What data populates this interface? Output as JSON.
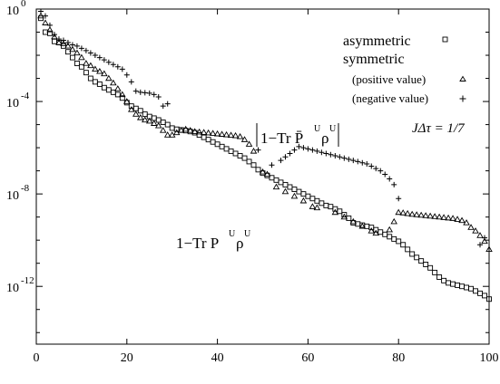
{
  "chart_data": {
    "type": "scatter",
    "x_axis": {
      "range": [
        0,
        100
      ],
      "ticks": [
        0,
        20,
        40,
        60,
        80,
        100
      ],
      "tick_labels": [
        "0",
        "20",
        "40",
        "60",
        "80",
        "100"
      ]
    },
    "y_axis": {
      "scale": "log",
      "range_exponent": [
        -14.5,
        0
      ],
      "ticks_exponent": [
        0,
        -4,
        -8,
        -12
      ],
      "tick_bases": [
        "10",
        "10",
        "10",
        "10"
      ],
      "tick_exps": [
        "0",
        "-4",
        "-8",
        "-12"
      ]
    },
    "grid": false,
    "legend": {
      "placement": "top-right",
      "entries": [
        {
          "label": "asymmetric",
          "marker": "square"
        },
        {
          "label": "symmetric",
          "marker": "none"
        },
        {
          "label": "(positive value)",
          "marker": "triangle"
        },
        {
          "label": "(negative value)",
          "marker": "plus"
        }
      ]
    },
    "annotations": {
      "param": "JΔτ = 1/7",
      "lower_curve": {
        "main": "1−Tr P",
        "sup": "U",
        "rho": "ρ",
        "rho_sup": "U"
      },
      "upper_curve": {
        "main": "1−Tr P̄",
        "sup": "U",
        "rho": "ρ",
        "rho_sup": "U"
      }
    },
    "series": [
      {
        "name": "asymmetric",
        "marker": "square",
        "points": [
          [
            1,
            -0.4
          ],
          [
            2,
            -1.0
          ],
          [
            3,
            -1.05
          ],
          [
            4,
            -1.4
          ],
          [
            5,
            -1.45
          ],
          [
            6,
            -1.6
          ],
          [
            7,
            -1.85
          ],
          [
            8,
            -2.1
          ],
          [
            9,
            -2.35
          ],
          [
            10,
            -2.5
          ],
          [
            11,
            -2.75
          ],
          [
            12,
            -3.0
          ],
          [
            13,
            -3.15
          ],
          [
            14,
            -3.25
          ],
          [
            15,
            -3.4
          ],
          [
            16,
            -3.5
          ],
          [
            17,
            -3.6
          ],
          [
            18,
            -3.7
          ],
          [
            19,
            -3.85
          ],
          [
            20,
            -4.05
          ],
          [
            21,
            -4.2
          ],
          [
            22,
            -4.3
          ],
          [
            23,
            -4.4
          ],
          [
            24,
            -4.55
          ],
          [
            25,
            -4.65
          ],
          [
            26,
            -4.72
          ],
          [
            27,
            -4.8
          ],
          [
            28,
            -4.9
          ],
          [
            29,
            -5.0
          ],
          [
            30,
            -5.15
          ],
          [
            31,
            -5.2
          ],
          [
            32,
            -5.23
          ],
          [
            33,
            -5.26
          ],
          [
            34,
            -5.3
          ],
          [
            35,
            -5.35
          ],
          [
            36,
            -5.45
          ],
          [
            37,
            -5.55
          ],
          [
            38,
            -5.65
          ],
          [
            39,
            -5.75
          ],
          [
            40,
            -5.85
          ],
          [
            41,
            -5.95
          ],
          [
            42,
            -6.05
          ],
          [
            43,
            -6.15
          ],
          [
            44,
            -6.25
          ],
          [
            45,
            -6.35
          ],
          [
            46,
            -6.45
          ],
          [
            47,
            -6.6
          ],
          [
            48,
            -6.75
          ],
          [
            49,
            -6.95
          ],
          [
            50,
            -7.1
          ],
          [
            51,
            -7.2
          ],
          [
            52,
            -7.3
          ],
          [
            53,
            -7.4
          ],
          [
            54,
            -7.5
          ],
          [
            55,
            -7.6
          ],
          [
            56,
            -7.7
          ],
          [
            57,
            -7.8
          ],
          [
            58,
            -7.9
          ],
          [
            59,
            -8.0
          ],
          [
            60,
            -8.1
          ],
          [
            61,
            -8.2
          ],
          [
            62,
            -8.3
          ],
          [
            63,
            -8.4
          ],
          [
            64,
            -8.5
          ],
          [
            65,
            -8.55
          ],
          [
            66,
            -8.65
          ],
          [
            67,
            -8.75
          ],
          [
            68,
            -8.9
          ],
          [
            69,
            -9.05
          ],
          [
            70,
            -9.25
          ],
          [
            71,
            -9.3
          ],
          [
            72,
            -9.35
          ],
          [
            73,
            -9.4
          ],
          [
            74,
            -9.45
          ],
          [
            75,
            -9.55
          ],
          [
            76,
            -9.65
          ],
          [
            77,
            -9.75
          ],
          [
            78,
            -9.85
          ],
          [
            79,
            -9.95
          ],
          [
            80,
            -10.05
          ],
          [
            81,
            -10.2
          ],
          [
            82,
            -10.4
          ],
          [
            83,
            -10.6
          ],
          [
            84,
            -10.75
          ],
          [
            85,
            -10.9
          ],
          [
            86,
            -11.05
          ],
          [
            87,
            -11.2
          ],
          [
            88,
            -11.4
          ],
          [
            89,
            -11.6
          ],
          [
            90,
            -11.75
          ],
          [
            91,
            -11.85
          ],
          [
            92,
            -11.9
          ],
          [
            93,
            -11.95
          ],
          [
            94,
            -12.0
          ],
          [
            95,
            -12.05
          ],
          [
            96,
            -12.1
          ],
          [
            97,
            -12.2
          ],
          [
            98,
            -12.3
          ],
          [
            99,
            -12.4
          ],
          [
            100,
            -12.55
          ]
        ]
      },
      {
        "name": "(positive value)",
        "marker": "triangle",
        "points": [
          [
            1,
            -0.3
          ],
          [
            2,
            -0.6
          ],
          [
            3,
            -0.9
          ],
          [
            4,
            -1.2
          ],
          [
            5,
            -1.45
          ],
          [
            6,
            -1.5
          ],
          [
            7,
            -1.6
          ],
          [
            8,
            -1.75
          ],
          [
            9,
            -1.9
          ],
          [
            10,
            -2.1
          ],
          [
            11,
            -2.35
          ],
          [
            12,
            -2.45
          ],
          [
            13,
            -2.6
          ],
          [
            14,
            -2.7
          ],
          [
            15,
            -2.8
          ],
          [
            16,
            -3.0
          ],
          [
            17,
            -3.2
          ],
          [
            18,
            -3.45
          ],
          [
            19,
            -3.7
          ],
          [
            20,
            -4.0
          ],
          [
            21,
            -4.35
          ],
          [
            22,
            -4.55
          ],
          [
            23,
            -4.7
          ],
          [
            24,
            -4.8
          ],
          [
            25,
            -4.85
          ],
          [
            26,
            -4.95
          ],
          [
            27,
            -5.05
          ],
          [
            28,
            -5.25
          ],
          [
            29,
            -5.45
          ],
          [
            30,
            -5.45
          ],
          [
            31,
            -5.35
          ],
          [
            32,
            -5.25
          ],
          [
            33,
            -5.2
          ],
          [
            34,
            -5.25
          ],
          [
            35,
            -5.3
          ],
          [
            36,
            -5.32
          ],
          [
            37,
            -5.34
          ],
          [
            38,
            -5.36
          ],
          [
            39,
            -5.38
          ],
          [
            40,
            -5.4
          ],
          [
            41,
            -5.42
          ],
          [
            42,
            -5.44
          ],
          [
            43,
            -5.46
          ],
          [
            44,
            -5.48
          ],
          [
            45,
            -5.52
          ],
          [
            46,
            -5.65
          ],
          [
            47,
            -5.85
          ],
          [
            48,
            -6.15
          ],
          [
            50,
            -7.05
          ],
          [
            51,
            -7.15
          ],
          [
            53,
            -7.7
          ],
          [
            55,
            -7.9
          ],
          [
            57,
            -8.1
          ],
          [
            59,
            -8.3
          ],
          [
            61,
            -8.55
          ],
          [
            62,
            -8.6
          ],
          [
            66,
            -8.8
          ],
          [
            68,
            -9.0
          ],
          [
            70,
            -9.2
          ],
          [
            72,
            -9.4
          ],
          [
            74,
            -9.6
          ],
          [
            75,
            -9.7
          ],
          [
            78,
            -9.55
          ],
          [
            79,
            -9.2
          ],
          [
            80,
            -8.8
          ],
          [
            81,
            -8.82
          ],
          [
            82,
            -8.85
          ],
          [
            83,
            -8.88
          ],
          [
            84,
            -8.9
          ],
          [
            85,
            -8.92
          ],
          [
            86,
            -8.94
          ],
          [
            87,
            -8.96
          ],
          [
            88,
            -8.98
          ],
          [
            89,
            -9.0
          ],
          [
            90,
            -9.02
          ],
          [
            91,
            -9.04
          ],
          [
            92,
            -9.06
          ],
          [
            93,
            -9.1
          ],
          [
            94,
            -9.15
          ],
          [
            95,
            -9.25
          ],
          [
            96,
            -9.45
          ],
          [
            97,
            -9.6
          ],
          [
            98,
            -9.8
          ],
          [
            99,
            -10.05
          ],
          [
            100,
            -10.4
          ]
        ]
      },
      {
        "name": "(negative value)",
        "marker": "plus",
        "points": [
          [
            1,
            -0.1
          ],
          [
            2,
            -0.3
          ],
          [
            3,
            -0.7
          ],
          [
            4,
            -1.1
          ],
          [
            5,
            -1.3
          ],
          [
            6,
            -1.35
          ],
          [
            7,
            -1.45
          ],
          [
            8,
            -1.55
          ],
          [
            9,
            -1.6
          ],
          [
            10,
            -1.7
          ],
          [
            11,
            -1.8
          ],
          [
            12,
            -1.9
          ],
          [
            13,
            -2.0
          ],
          [
            14,
            -2.1
          ],
          [
            15,
            -2.2
          ],
          [
            16,
            -2.3
          ],
          [
            17,
            -2.4
          ],
          [
            18,
            -2.5
          ],
          [
            19,
            -2.6
          ],
          [
            20,
            -2.85
          ],
          [
            21,
            -3.15
          ],
          [
            22,
            -3.55
          ],
          [
            23,
            -3.6
          ],
          [
            24,
            -3.62
          ],
          [
            25,
            -3.64
          ],
          [
            26,
            -3.7
          ],
          [
            27,
            -3.8
          ],
          [
            28,
            -4.2
          ],
          [
            29,
            -4.1
          ],
          [
            49,
            -6.1
          ],
          [
            52,
            -6.75
          ],
          [
            54,
            -6.55
          ],
          [
            55,
            -6.4
          ],
          [
            56,
            -6.25
          ],
          [
            57,
            -6.1
          ],
          [
            58,
            -5.95
          ],
          [
            59,
            -6.0
          ],
          [
            60,
            -6.05
          ],
          [
            61,
            -6.1
          ],
          [
            62,
            -6.15
          ],
          [
            63,
            -6.2
          ],
          [
            64,
            -6.25
          ],
          [
            65,
            -6.3
          ],
          [
            66,
            -6.35
          ],
          [
            67,
            -6.4
          ],
          [
            68,
            -6.45
          ],
          [
            69,
            -6.5
          ],
          [
            70,
            -6.55
          ],
          [
            71,
            -6.6
          ],
          [
            72,
            -6.65
          ],
          [
            73,
            -6.7
          ],
          [
            74,
            -6.8
          ],
          [
            75,
            -6.9
          ],
          [
            76,
            -7.0
          ],
          [
            77,
            -7.15
          ],
          [
            78,
            -7.35
          ],
          [
            79,
            -7.6
          ],
          [
            80,
            -8.2
          ],
          [
            98,
            -10.2
          ],
          [
            99,
            -9.9
          ]
        ]
      }
    ]
  }
}
